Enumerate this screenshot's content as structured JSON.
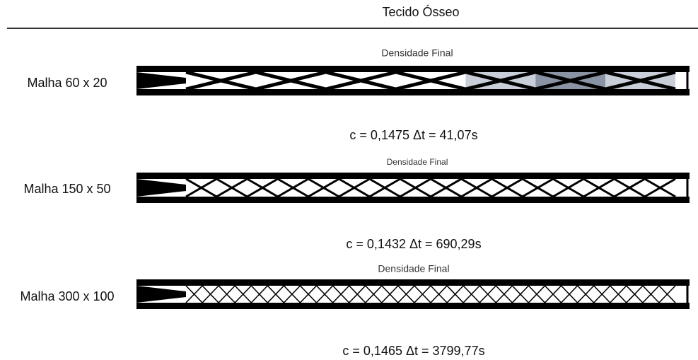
{
  "header": {
    "title": "Tecido Ósseo"
  },
  "rows": [
    {
      "label": "Malha 60 x 20",
      "image_title": "Densidade Final",
      "result": "c = 0,1475 Δt = 41,07s"
    },
    {
      "label": "Malha 150 x 50",
      "image_title": "Densidade Final",
      "result": "c = 0,1432 Δt = 690,29s"
    },
    {
      "label": "Malha 300 x 100",
      "image_title": "Densidade Final",
      "result": "c = 0,1465 Δt = 3799,77s"
    }
  ]
}
